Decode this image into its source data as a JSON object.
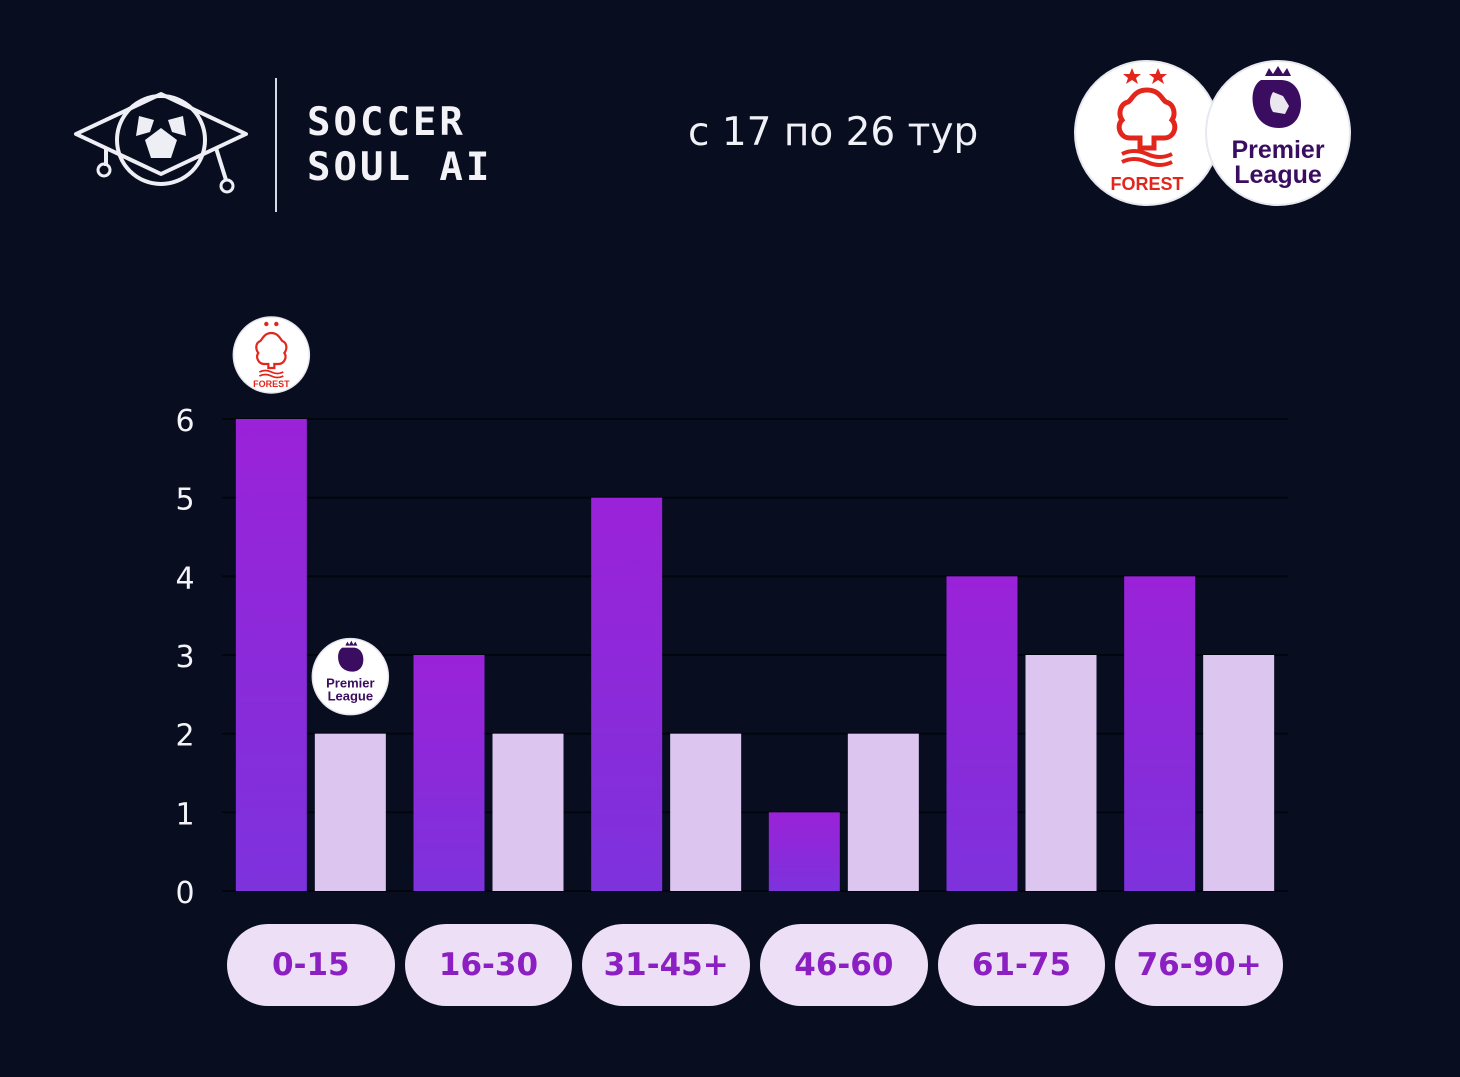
{
  "brand": {
    "name_line1": "SOCCER",
    "name_line2": "SOUL AI",
    "logo_icon": "graduation-cap-ball-icon"
  },
  "subtitle": "с 17 по 26 тур",
  "badges": {
    "team_name": "FOREST",
    "league_line1": "Premier",
    "league_line2": "League"
  },
  "colors": {
    "background": "#080d20",
    "team_bar_top": "#9a22d8",
    "team_bar_bottom": "#7d32dc",
    "league_bar": "#dcc6ef",
    "pill_bg": "#ecdff6",
    "pill_text": "#8c1fc2",
    "forest_red": "#e2261c",
    "league_purple": "#3b0d60"
  },
  "chart_data": {
    "type": "bar",
    "categories": [
      "0-15",
      "16-30",
      "31-45+",
      "46-60",
      "61-75",
      "76-90+"
    ],
    "series": [
      {
        "values": [
          6,
          3,
          5,
          1,
          4,
          4
        ]
      },
      {
        "values": [
          2,
          2,
          2,
          2,
          3,
          3
        ]
      }
    ],
    "yticks": [
      "0",
      "1",
      "2",
      "3",
      "4",
      "5",
      "6"
    ],
    "ylim": [
      0,
      6
    ],
    "grid": true,
    "legend": "badges above first pair of bars"
  }
}
